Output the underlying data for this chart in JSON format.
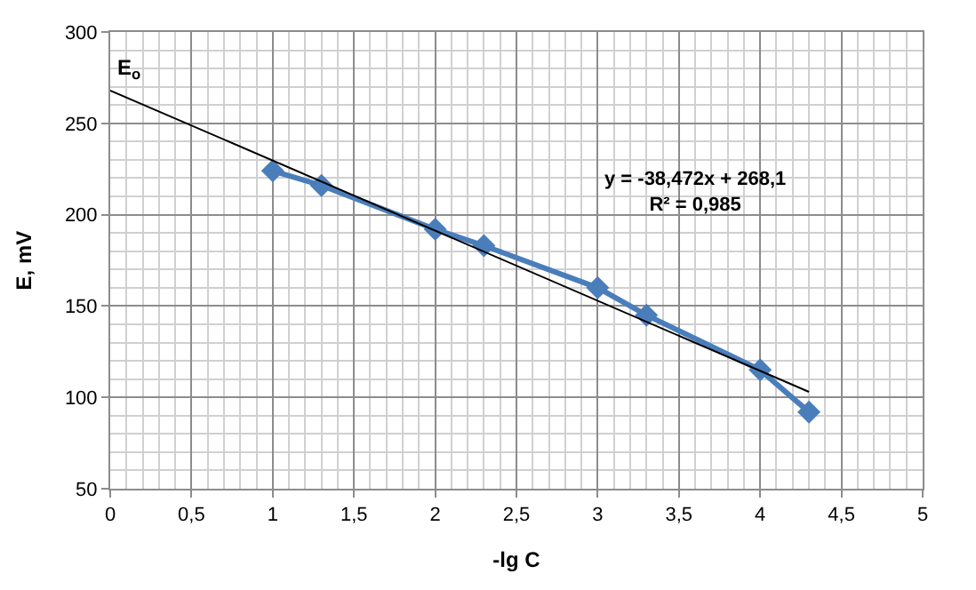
{
  "chart_data": {
    "type": "line",
    "xlabel": "-lg C",
    "ylabel": "E, mV",
    "xlim": [
      0,
      5
    ],
    "ylim": [
      50,
      300
    ],
    "xticks": [
      0,
      {
        "value": 0.5,
        "label": "0,5"
      },
      1,
      {
        "value": 1.5,
        "label": "1,5"
      },
      2,
      {
        "value": 2.5,
        "label": "2,5"
      },
      3,
      {
        "value": 3.5,
        "label": "3,5"
      },
      4,
      {
        "value": 4.5,
        "label": "4,5"
      },
      5
    ],
    "yticks": [
      50,
      100,
      150,
      200,
      250,
      300
    ],
    "grid": true,
    "legend": false,
    "series": [
      {
        "color": "#4a7ebb",
        "marker": "diamond",
        "x": [
          1,
          1.3,
          2,
          2.3,
          3,
          3.3,
          4,
          4.3
        ],
        "values": [
          224,
          216,
          192,
          183,
          160,
          145,
          115,
          92
        ]
      },
      {
        "type": "line",
        "color": "#000000",
        "marker": "none",
        "x": [
          0,
          4.3
        ],
        "values": [
          268,
          103
        ]
      }
    ],
    "annotations": [
      {
        "text": "E$_{o}$",
        "x": 0,
        "y": 268
      },
      "y = -38,472x + 268,1",
      "R² = 0,985"
    ]
  }
}
